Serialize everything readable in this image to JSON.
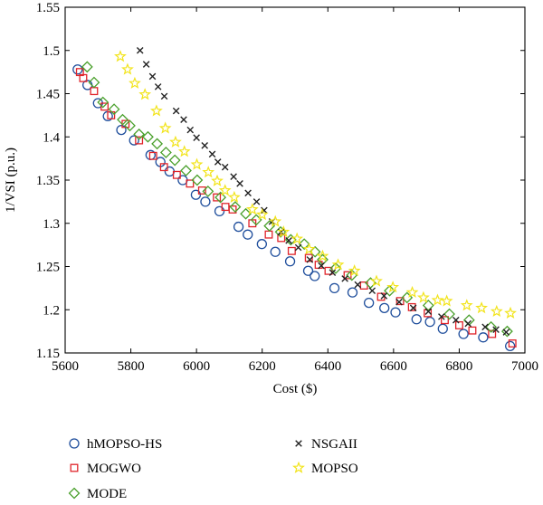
{
  "chart_data": {
    "type": "scatter",
    "title": "",
    "xlabel": "Cost ($)",
    "ylabel": "1/VSI (p.u.)",
    "xlim": [
      5600,
      7000
    ],
    "ylim": [
      1.15,
      1.55
    ],
    "xticks": [
      "5600",
      "5800",
      "6000",
      "6200",
      "6400",
      "6600",
      "6800",
      "7000"
    ],
    "yticks": [
      "1.15",
      "1.2",
      "1.25",
      "1.3",
      "1.35",
      "1.4",
      "1.45",
      "1.5",
      "1.55"
    ],
    "grid": false,
    "legend_position": "bottom",
    "series": [
      {
        "name": "hMOPSO-HS",
        "marker": "circle",
        "color": "#1f4e9c",
        "points": [
          [
            5638,
            1.478
          ],
          [
            5668,
            1.46
          ],
          [
            5700,
            1.439
          ],
          [
            5730,
            1.424
          ],
          [
            5771,
            1.408
          ],
          [
            5810,
            1.396
          ],
          [
            5860,
            1.379
          ],
          [
            5890,
            1.371
          ],
          [
            5918,
            1.36
          ],
          [
            5958,
            1.35
          ],
          [
            5998,
            1.333
          ],
          [
            6027,
            1.325
          ],
          [
            6070,
            1.314
          ],
          [
            6128,
            1.296
          ],
          [
            6156,
            1.287
          ],
          [
            6199,
            1.276
          ],
          [
            6240,
            1.267
          ],
          [
            6285,
            1.256
          ],
          [
            6340,
            1.245
          ],
          [
            6360,
            1.239
          ],
          [
            6420,
            1.225
          ],
          [
            6475,
            1.22
          ],
          [
            6525,
            1.208
          ],
          [
            6572,
            1.202
          ],
          [
            6606,
            1.197
          ],
          [
            6670,
            1.189
          ],
          [
            6711,
            1.186
          ],
          [
            6750,
            1.178
          ],
          [
            6813,
            1.172
          ],
          [
            6873,
            1.168
          ],
          [
            6955,
            1.158
          ]
        ]
      },
      {
        "name": "MOGWO",
        "marker": "square",
        "color": "#e0242a",
        "points": [
          [
            5645,
            1.475
          ],
          [
            5655,
            1.468
          ],
          [
            5688,
            1.453
          ],
          [
            5720,
            1.435
          ],
          [
            5740,
            1.425
          ],
          [
            5784,
            1.415
          ],
          [
            5825,
            1.396
          ],
          [
            5868,
            1.378
          ],
          [
            5901,
            1.365
          ],
          [
            5940,
            1.356
          ],
          [
            5980,
            1.346
          ],
          [
            6017,
            1.338
          ],
          [
            6062,
            1.33
          ],
          [
            6088,
            1.319
          ],
          [
            6110,
            1.316
          ],
          [
            6170,
            1.3
          ],
          [
            6220,
            1.287
          ],
          [
            6258,
            1.283
          ],
          [
            6290,
            1.268
          ],
          [
            6342,
            1.26
          ],
          [
            6372,
            1.252
          ],
          [
            6402,
            1.245
          ],
          [
            6460,
            1.24
          ],
          [
            6510,
            1.228
          ],
          [
            6562,
            1.215
          ],
          [
            6620,
            1.21
          ],
          [
            6656,
            1.203
          ],
          [
            6704,
            1.196
          ],
          [
            6756,
            1.188
          ],
          [
            6800,
            1.182
          ],
          [
            6840,
            1.176
          ],
          [
            6900,
            1.172
          ],
          [
            6962,
            1.161
          ]
        ]
      },
      {
        "name": "MODE",
        "marker": "diamond",
        "color": "#4aa02c",
        "points": [
          [
            5667,
            1.481
          ],
          [
            5688,
            1.463
          ],
          [
            5715,
            1.44
          ],
          [
            5749,
            1.432
          ],
          [
            5775,
            1.42
          ],
          [
            5797,
            1.413
          ],
          [
            5825,
            1.403
          ],
          [
            5852,
            1.4
          ],
          [
            5880,
            1.392
          ],
          [
            5907,
            1.382
          ],
          [
            5934,
            1.373
          ],
          [
            5968,
            1.361
          ],
          [
            6002,
            1.35
          ],
          [
            6035,
            1.337
          ],
          [
            6073,
            1.33
          ],
          [
            6118,
            1.319
          ],
          [
            6150,
            1.311
          ],
          [
            6182,
            1.304
          ],
          [
            6222,
            1.297
          ],
          [
            6256,
            1.29
          ],
          [
            6287,
            1.281
          ],
          [
            6328,
            1.276
          ],
          [
            6361,
            1.267
          ],
          [
            6384,
            1.258
          ],
          [
            6424,
            1.248
          ],
          [
            6473,
            1.24
          ],
          [
            6530,
            1.231
          ],
          [
            6588,
            1.222
          ],
          [
            6641,
            1.214
          ],
          [
            6706,
            1.205
          ],
          [
            6770,
            1.195
          ],
          [
            6830,
            1.188
          ],
          [
            6897,
            1.18
          ],
          [
            6946,
            1.175
          ]
        ]
      },
      {
        "name": "NSGAII",
        "marker": "x",
        "color": "#222222",
        "points": [
          [
            5828,
            1.5
          ],
          [
            5847,
            1.484
          ],
          [
            5866,
            1.47
          ],
          [
            5883,
            1.458
          ],
          [
            5902,
            1.447
          ],
          [
            5938,
            1.43
          ],
          [
            5961,
            1.42
          ],
          [
            5981,
            1.408
          ],
          [
            6000,
            1.399
          ],
          [
            6025,
            1.39
          ],
          [
            6048,
            1.38
          ],
          [
            6065,
            1.371
          ],
          [
            6087,
            1.365
          ],
          [
            6113,
            1.354
          ],
          [
            6132,
            1.346
          ],
          [
            6157,
            1.335
          ],
          [
            6183,
            1.325
          ],
          [
            6206,
            1.315
          ],
          [
            6230,
            1.302
          ],
          [
            6257,
            1.29
          ],
          [
            6281,
            1.28
          ],
          [
            6310,
            1.272
          ],
          [
            6345,
            1.258
          ],
          [
            6380,
            1.251
          ],
          [
            6414,
            1.243
          ],
          [
            6452,
            1.236
          ],
          [
            6491,
            1.229
          ],
          [
            6535,
            1.222
          ],
          [
            6571,
            1.216
          ],
          [
            6617,
            1.209
          ],
          [
            6660,
            1.202
          ],
          [
            6706,
            1.198
          ],
          [
            6746,
            1.192
          ],
          [
            6790,
            1.188
          ],
          [
            6827,
            1.184
          ],
          [
            6879,
            1.18
          ],
          [
            6912,
            1.177
          ],
          [
            6943,
            1.174
          ]
        ]
      },
      {
        "name": "MOPSO",
        "marker": "star",
        "color": "#f2e41c",
        "points": [
          [
            5768,
            1.493
          ],
          [
            5790,
            1.478
          ],
          [
            5812,
            1.462
          ],
          [
            5843,
            1.449
          ],
          [
            5878,
            1.43
          ],
          [
            5905,
            1.41
          ],
          [
            5936,
            1.394
          ],
          [
            5963,
            1.383
          ],
          [
            6001,
            1.368
          ],
          [
            6036,
            1.359
          ],
          [
            6063,
            1.349
          ],
          [
            6087,
            1.338
          ],
          [
            6115,
            1.33
          ],
          [
            6170,
            1.316
          ],
          [
            6200,
            1.31
          ],
          [
            6240,
            1.302
          ],
          [
            6265,
            1.29
          ],
          [
            6306,
            1.282
          ],
          [
            6343,
            1.27
          ],
          [
            6384,
            1.262
          ],
          [
            6431,
            1.252
          ],
          [
            6481,
            1.245
          ],
          [
            6548,
            1.233
          ],
          [
            6598,
            1.226
          ],
          [
            6657,
            1.22
          ],
          [
            6691,
            1.214
          ],
          [
            6734,
            1.211
          ],
          [
            6762,
            1.21
          ],
          [
            6823,
            1.205
          ],
          [
            6868,
            1.202
          ],
          [
            6914,
            1.198
          ],
          [
            6956,
            1.196
          ]
        ]
      }
    ]
  }
}
